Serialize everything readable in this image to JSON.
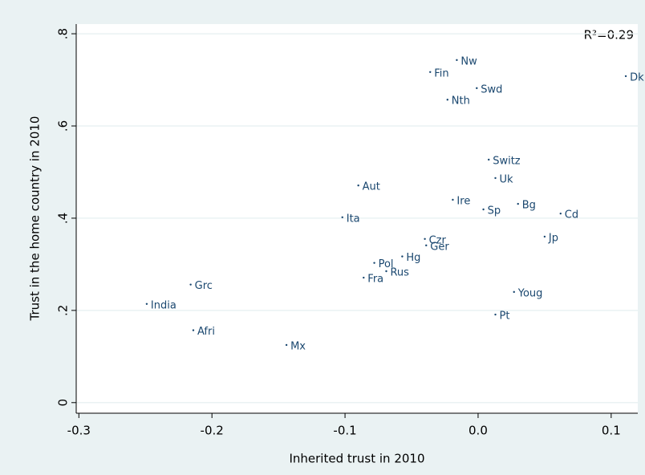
{
  "chart_data": {
    "type": "scatter",
    "x_label": "Inherited trust in 2010",
    "y_label": "Trust in the home country in 2010",
    "annotation": "R²=0.29",
    "color": "#1a476f",
    "point_labels": [
      "Dk",
      "Nw",
      "Fin",
      "Swd",
      "Nth",
      "Switz",
      "Uk",
      "Aut",
      "Ire",
      "Bg",
      "Sp",
      "Cd",
      "Ita",
      "Jp",
      "Czr",
      "Ger",
      "Hg",
      "Pol",
      "Rus",
      "Fra",
      "Grc",
      "Youg",
      "India",
      "Pt",
      "Afri",
      "Mx"
    ],
    "x": [
      0.111,
      -0.016,
      -0.036,
      -0.001,
      -0.023,
      0.008,
      0.013,
      -0.09,
      -0.019,
      0.03,
      0.004,
      0.062,
      -0.102,
      0.05,
      -0.04,
      -0.039,
      -0.057,
      -0.078,
      -0.069,
      -0.086,
      -0.216,
      0.027,
      -0.249,
      0.013,
      -0.214,
      -0.144
    ],
    "values": [
      0.708,
      0.743,
      0.717,
      0.682,
      0.657,
      0.527,
      0.487,
      0.471,
      0.44,
      0.431,
      0.419,
      0.41,
      0.402,
      0.36,
      0.355,
      0.341,
      0.317,
      0.303,
      0.285,
      0.271,
      0.256,
      0.24,
      0.214,
      0.191,
      0.157,
      0.125
    ],
    "xlim": [
      -0.302,
      0.12
    ],
    "ylim": [
      -0.023,
      0.821
    ],
    "xticks": [
      -0.3,
      -0.2,
      -0.1,
      {
        "value": 0,
        "label": "0.0"
      },
      0.1
    ],
    "yticks": [
      0,
      {
        "value": 0.2,
        "label": ".2"
      },
      {
        "value": 0.4,
        "label": ".4"
      },
      {
        "value": 0.6,
        "label": ".6"
      },
      {
        "value": 0.8,
        "label": ".8"
      }
    ],
    "grid": true
  }
}
